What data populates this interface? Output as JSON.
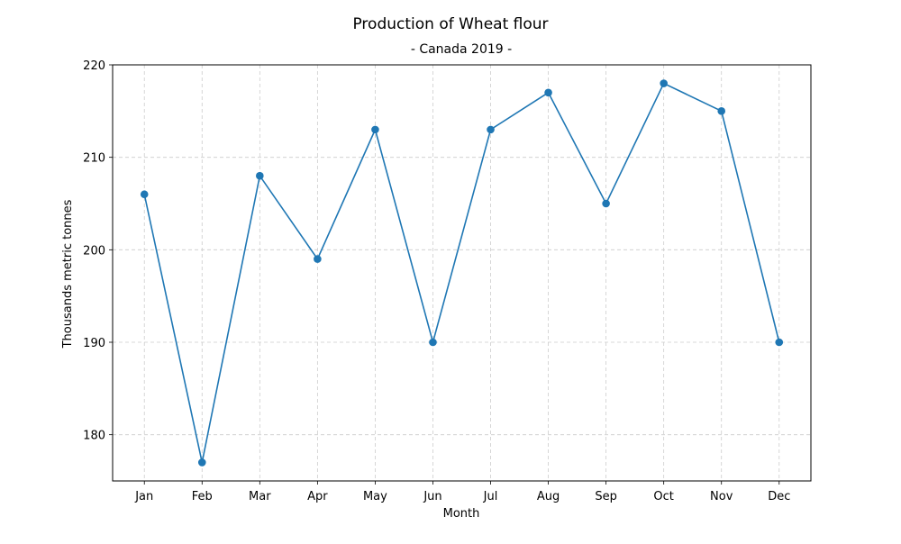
{
  "chart_data": {
    "type": "line",
    "title": "Production of Wheat flour",
    "subtitle": "- Canada 2019 -",
    "xlabel": "Month",
    "ylabel": "Thousands metric tonnes",
    "categories": [
      "Jan",
      "Feb",
      "Mar",
      "Apr",
      "May",
      "Jun",
      "Jul",
      "Aug",
      "Sep",
      "Oct",
      "Nov",
      "Dec"
    ],
    "series": [
      {
        "values": [
          206,
          177,
          208,
          199,
          213,
          190,
          213,
          217,
          205,
          218,
          215,
          190
        ]
      }
    ],
    "ylim": [
      175,
      220
    ],
    "yticks": [
      180,
      190,
      200,
      210,
      220
    ],
    "grid": true,
    "markers": true,
    "colors": {
      "line": "#1f77b4",
      "grid": "#cccccc"
    }
  }
}
